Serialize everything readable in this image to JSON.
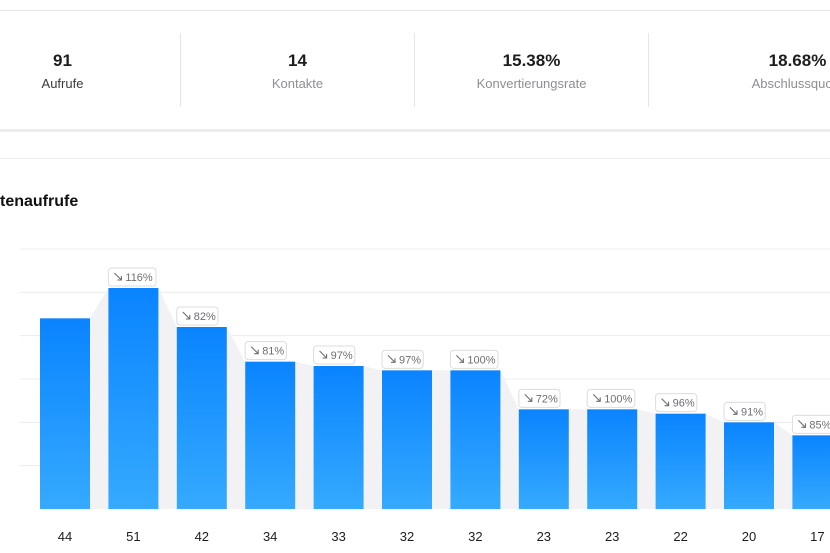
{
  "stats": [
    {
      "value": "91",
      "label": "Aufrufe"
    },
    {
      "value": "14",
      "label": "Kontakte"
    },
    {
      "value": "15.38%",
      "label": "Konvertierungsrate"
    },
    {
      "value": "18.68%",
      "label": "Abschlussquote"
    }
  ],
  "section": {
    "title": "tenaufrufe"
  },
  "chart_data": {
    "type": "bar",
    "title": "tenaufrufe",
    "categories": [
      "44",
      "51",
      "42",
      "34",
      "33",
      "32",
      "32",
      "23",
      "23",
      "22",
      "20",
      "17"
    ],
    "values": [
      44,
      51,
      42,
      34,
      33,
      32,
      32,
      23,
      23,
      22,
      20,
      17
    ],
    "annotations": [
      "",
      "116%",
      "82%",
      "81%",
      "97%",
      "97%",
      "100%",
      "72%",
      "100%",
      "96%",
      "91%",
      "85%"
    ],
    "annotation_icon": "trend-down-arrow-icon",
    "ylim": [
      0,
      60
    ],
    "grid": true,
    "legend": "none",
    "colors": {
      "bar_top": "#0a84ff",
      "bar_bottom": "#35aaff",
      "grid": "#ececef",
      "connector": "#f2f2f4",
      "label_text": "#6e6e73"
    }
  }
}
